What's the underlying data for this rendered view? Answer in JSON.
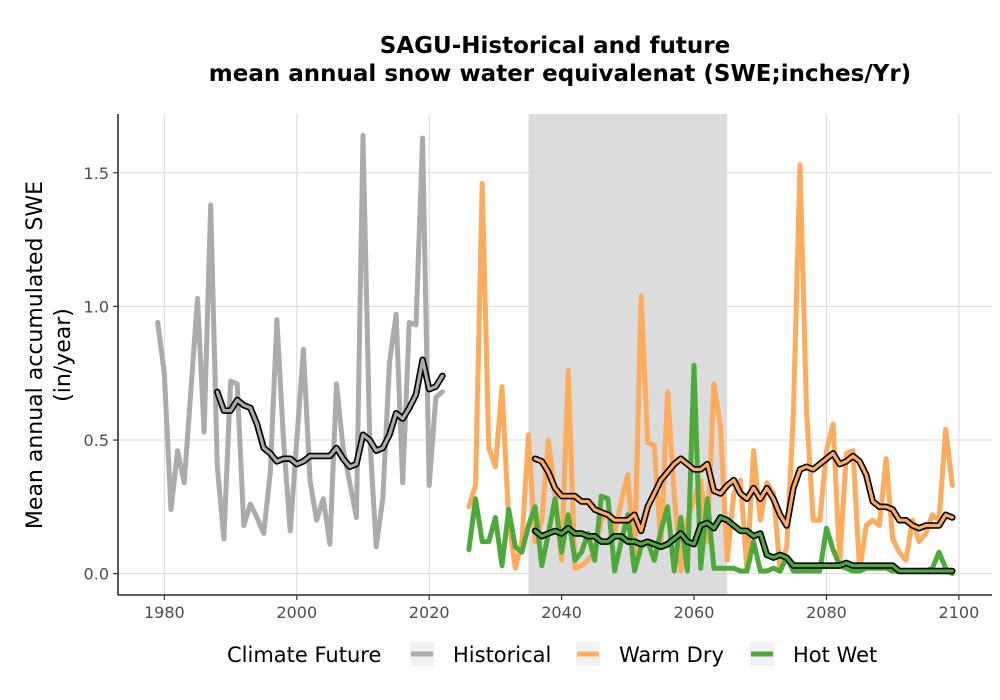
{
  "chart_data": {
    "type": "line",
    "title": "SAGU-Historical and future",
    "subtitle": "mean annual snow water equivalenat (SWE;inches/Yr)",
    "xlabel": "",
    "ylabel_line1": "Mean annual accumulated SWE",
    "ylabel_line2": "(in/year)",
    "xlim": [
      1973,
      2105
    ],
    "ylim": [
      -0.08,
      1.72
    ],
    "xticks": [
      1980,
      2000,
      2020,
      2040,
      2060,
      2080,
      2100
    ],
    "yticks": [
      0.0,
      0.5,
      1.0,
      1.5
    ],
    "ytick_labels": [
      "0.0",
      "0.5",
      "1.0",
      "1.5"
    ],
    "grid": true,
    "shaded_period": [
      2035,
      2065
    ],
    "shade_color": "#dcdcdc",
    "legend_title": "Climate Future",
    "legend_position": "bottom",
    "series": [
      {
        "name": "Historical",
        "color": "#ababab",
        "x": [
          1979,
          1980,
          1981,
          1982,
          1983,
          1984,
          1985,
          1986,
          1987,
          1988,
          1989,
          1990,
          1991,
          1992,
          1993,
          1994,
          1995,
          1996,
          1997,
          1998,
          1999,
          2000,
          2001,
          2002,
          2003,
          2004,
          2005,
          2006,
          2007,
          2008,
          2009,
          2010,
          2011,
          2012,
          2013,
          2014,
          2015,
          2016,
          2017,
          2018,
          2019,
          2020,
          2021,
          2022
        ],
        "values": [
          0.94,
          0.75,
          0.24,
          0.46,
          0.34,
          0.68,
          1.03,
          0.53,
          1.38,
          0.4,
          0.13,
          0.72,
          0.71,
          0.18,
          0.26,
          0.21,
          0.15,
          0.38,
          0.95,
          0.5,
          0.16,
          0.5,
          0.84,
          0.35,
          0.2,
          0.28,
          0.11,
          0.71,
          0.47,
          0.34,
          0.21,
          1.64,
          0.52,
          0.1,
          0.28,
          0.79,
          0.97,
          0.34,
          0.94,
          0.93,
          1.63,
          0.33,
          0.66,
          0.68
        ],
        "smooth_x": [
          1988,
          1989,
          1990,
          1991,
          1992,
          1993,
          1994,
          1995,
          1996,
          1997,
          1998,
          1999,
          2000,
          2001,
          2002,
          2003,
          2004,
          2005,
          2006,
          2007,
          2008,
          2009,
          2010,
          2011,
          2012,
          2013,
          2014,
          2015,
          2016,
          2017,
          2018,
          2019,
          2020,
          2021,
          2022
        ],
        "smooth_values": [
          0.68,
          0.61,
          0.61,
          0.65,
          0.63,
          0.62,
          0.56,
          0.47,
          0.45,
          0.42,
          0.43,
          0.43,
          0.41,
          0.42,
          0.44,
          0.44,
          0.44,
          0.44,
          0.47,
          0.43,
          0.4,
          0.41,
          0.52,
          0.5,
          0.46,
          0.47,
          0.52,
          0.6,
          0.58,
          0.62,
          0.67,
          0.8,
          0.69,
          0.7,
          0.74
        ]
      },
      {
        "name": "Warm Dry",
        "color": "#fdab5c",
        "x": [
          2026,
          2027,
          2028,
          2029,
          2030,
          2031,
          2032,
          2033,
          2034,
          2035,
          2036,
          2037,
          2038,
          2039,
          2040,
          2041,
          2042,
          2043,
          2044,
          2045,
          2046,
          2047,
          2048,
          2049,
          2050,
          2051,
          2052,
          2053,
          2054,
          2055,
          2056,
          2057,
          2058,
          2059,
          2060,
          2061,
          2062,
          2063,
          2064,
          2065,
          2066,
          2067,
          2068,
          2069,
          2070,
          2071,
          2072,
          2073,
          2074,
          2075,
          2076,
          2077,
          2078,
          2079,
          2080,
          2081,
          2082,
          2083,
          2084,
          2085,
          2086,
          2087,
          2088,
          2089,
          2090,
          2091,
          2092,
          2093,
          2094,
          2095,
          2096,
          2097,
          2098,
          2099
        ],
        "values": [
          0.25,
          0.33,
          1.46,
          0.47,
          0.4,
          0.7,
          0.2,
          0.02,
          0.12,
          0.52,
          0.12,
          0.2,
          0.5,
          0.3,
          0.05,
          0.76,
          0.02,
          0.03,
          0.05,
          0.08,
          0.2,
          0.23,
          0.15,
          0.27,
          0.37,
          0.03,
          1.04,
          0.49,
          0.48,
          0.1,
          0.68,
          0.3,
          0.01,
          0.2,
          0.28,
          0.35,
          0.12,
          0.71,
          0.55,
          0.05,
          0.3,
          0.35,
          0.01,
          0.46,
          0.2,
          0.34,
          0.3,
          0.01,
          0.1,
          0.6,
          1.53,
          0.6,
          0.2,
          0.2,
          0.46,
          0.56,
          0.04,
          0.45,
          0.46,
          0.01,
          0.18,
          0.2,
          0.18,
          0.43,
          0.13,
          0.08,
          0.05,
          0.2,
          0.12,
          0.15,
          0.22,
          0.2,
          0.54,
          0.33
        ],
        "smooth_x": [
          2036,
          2037,
          2038,
          2039,
          2040,
          2041,
          2042,
          2043,
          2044,
          2045,
          2046,
          2047,
          2048,
          2049,
          2050,
          2051,
          2052,
          2053,
          2054,
          2055,
          2056,
          2057,
          2058,
          2059,
          2060,
          2061,
          2062,
          2063,
          2064,
          2065,
          2066,
          2067,
          2068,
          2069,
          2070,
          2071,
          2072,
          2073,
          2074,
          2075,
          2076,
          2077,
          2078,
          2079,
          2080,
          2081,
          2082,
          2083,
          2084,
          2085,
          2086,
          2087,
          2088,
          2089,
          2090,
          2091,
          2092,
          2093,
          2094,
          2095,
          2096,
          2097,
          2098,
          2099
        ],
        "smooth_values": [
          0.43,
          0.42,
          0.38,
          0.32,
          0.29,
          0.29,
          0.29,
          0.27,
          0.27,
          0.24,
          0.23,
          0.22,
          0.2,
          0.2,
          0.2,
          0.22,
          0.16,
          0.25,
          0.3,
          0.35,
          0.38,
          0.41,
          0.43,
          0.41,
          0.39,
          0.39,
          0.41,
          0.31,
          0.3,
          0.33,
          0.35,
          0.3,
          0.28,
          0.32,
          0.28,
          0.32,
          0.28,
          0.22,
          0.18,
          0.32,
          0.39,
          0.4,
          0.39,
          0.41,
          0.43,
          0.45,
          0.41,
          0.42,
          0.44,
          0.42,
          0.37,
          0.27,
          0.25,
          0.25,
          0.24,
          0.2,
          0.2,
          0.18,
          0.17,
          0.18,
          0.18,
          0.18,
          0.22,
          0.21
        ]
      },
      {
        "name": "Hot Wet",
        "color": "#4daa3a",
        "x": [
          2026,
          2027,
          2028,
          2029,
          2030,
          2031,
          2032,
          2033,
          2034,
          2035,
          2036,
          2037,
          2038,
          2039,
          2040,
          2041,
          2042,
          2043,
          2044,
          2045,
          2046,
          2047,
          2048,
          2049,
          2050,
          2051,
          2052,
          2053,
          2054,
          2055,
          2056,
          2057,
          2058,
          2059,
          2060,
          2061,
          2062,
          2063,
          2064,
          2065,
          2066,
          2067,
          2068,
          2069,
          2070,
          2071,
          2072,
          2073,
          2074,
          2075,
          2076,
          2077,
          2078,
          2079,
          2080,
          2081,
          2082,
          2083,
          2084,
          2085,
          2086,
          2087,
          2088,
          2089,
          2090,
          2091,
          2092,
          2093,
          2094,
          2095,
          2096,
          2097,
          2098,
          2099
        ],
        "values": [
          0.09,
          0.28,
          0.12,
          0.12,
          0.21,
          0.03,
          0.24,
          0.1,
          0.08,
          0.18,
          0.25,
          0.03,
          0.15,
          0.28,
          0.08,
          0.22,
          0.05,
          0.08,
          0.15,
          0.05,
          0.29,
          0.28,
          0.01,
          0.12,
          0.22,
          0.01,
          0.1,
          0.12,
          0.05,
          0.16,
          0.25,
          0.01,
          0.21,
          0.01,
          0.78,
          0.02,
          0.28,
          0.02,
          0.02,
          0.02,
          0.02,
          0.01,
          0.01,
          0.12,
          0.01,
          0.01,
          0.02,
          0.01,
          0.06,
          0.01,
          0.01,
          0.01,
          0.01,
          0.01,
          0.17,
          0.09,
          0.03,
          0.02,
          0.01,
          0.01,
          0.02,
          0.02,
          0.02,
          0.02,
          0.01,
          0.01,
          0.01,
          0.01,
          0.01,
          0.01,
          0.02,
          0.08,
          0.02,
          0.0
        ],
        "smooth_x": [
          2036,
          2037,
          2038,
          2039,
          2040,
          2041,
          2042,
          2043,
          2044,
          2045,
          2046,
          2047,
          2048,
          2049,
          2050,
          2051,
          2052,
          2053,
          2054,
          2055,
          2056,
          2057,
          2058,
          2059,
          2060,
          2061,
          2062,
          2063,
          2064,
          2065,
          2066,
          2067,
          2068,
          2069,
          2070,
          2071,
          2072,
          2073,
          2074,
          2075,
          2076,
          2077,
          2078,
          2079,
          2080,
          2081,
          2082,
          2083,
          2084,
          2085,
          2086,
          2087,
          2088,
          2089,
          2090,
          2091,
          2092,
          2093,
          2094,
          2095,
          2096,
          2097,
          2098,
          2099
        ],
        "smooth_values": [
          0.16,
          0.14,
          0.15,
          0.16,
          0.15,
          0.17,
          0.15,
          0.15,
          0.14,
          0.14,
          0.12,
          0.12,
          0.14,
          0.14,
          0.12,
          0.12,
          0.11,
          0.12,
          0.11,
          0.1,
          0.11,
          0.13,
          0.15,
          0.12,
          0.11,
          0.18,
          0.19,
          0.17,
          0.21,
          0.2,
          0.18,
          0.16,
          0.16,
          0.14,
          0.15,
          0.07,
          0.06,
          0.07,
          0.06,
          0.03,
          0.03,
          0.03,
          0.03,
          0.03,
          0.03,
          0.03,
          0.03,
          0.04,
          0.03,
          0.03,
          0.03,
          0.03,
          0.03,
          0.03,
          0.03,
          0.01,
          0.01,
          0.01,
          0.01,
          0.01,
          0.01,
          0.01,
          0.01,
          0.01
        ]
      }
    ]
  }
}
